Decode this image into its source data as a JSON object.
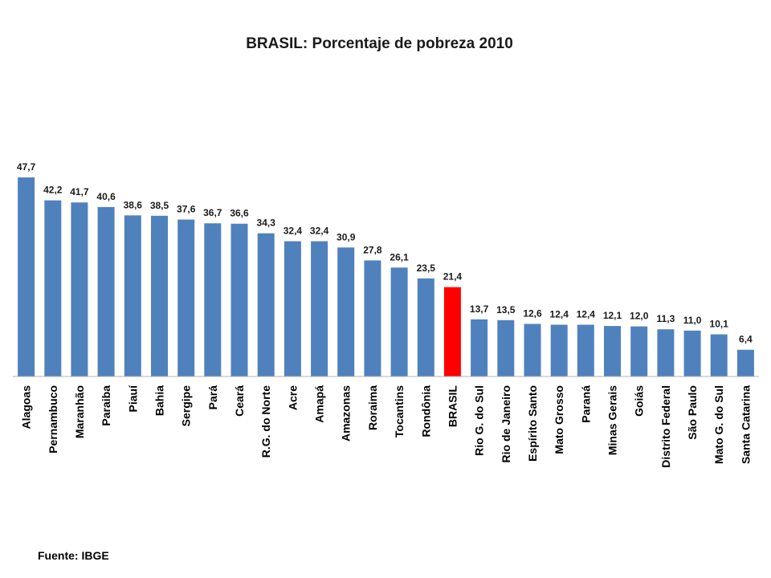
{
  "chart_data": {
    "type": "bar",
    "title": "BRASIL: Porcentaje de pobreza 2010",
    "xlabel": "",
    "ylabel": "",
    "ylim": [
      0,
      50
    ],
    "grid": false,
    "legend": "none",
    "colors": {
      "default": "#4f81bd",
      "highlight": "#ff0000",
      "highlight_category": "BRASIL"
    },
    "categories": [
      "Alagoas",
      "Pernambuco",
      "Maranhão",
      "Paraiba",
      "Piauí",
      "Bahia",
      "Sergipe",
      "Pará",
      "Ceará",
      "R.G. do Norte",
      "Acre",
      "Amapá",
      "Amazonas",
      "Roraima",
      "Tocantins",
      "Rondônia",
      "BRASIL",
      "Rio G. do Sul",
      "Rio de Janeiro",
      "Espírito Santo",
      "Mato Grosso",
      "Paraná",
      "Minas Gerais",
      "Goiás",
      "Distrito Federal",
      "São Paulo",
      "Mato G. do Sul",
      "Santa Catarina"
    ],
    "values": [
      47.7,
      42.2,
      41.7,
      40.6,
      38.6,
      38.5,
      37.6,
      36.7,
      36.6,
      34.3,
      32.4,
      32.4,
      30.9,
      27.8,
      26.1,
      23.5,
      21.4,
      13.7,
      13.5,
      12.6,
      12.4,
      12.4,
      12.1,
      12.0,
      11.3,
      11.0,
      10.1,
      6.4
    ],
    "value_labels": [
      "47,7",
      "42,2",
      "41,7",
      "40,6",
      "38,6",
      "38,5",
      "37,6",
      "36,7",
      "36,6",
      "34,3",
      "32,4",
      "32,4",
      "30,9",
      "27,8",
      "26,1",
      "23,5",
      "21,4",
      "13,7",
      "13,5",
      "12,6",
      "12,4",
      "12,4",
      "12,1",
      "12,0",
      "11,3",
      "11,0",
      "10,1",
      "6,4"
    ]
  },
  "source": "Fuente: IBGE"
}
